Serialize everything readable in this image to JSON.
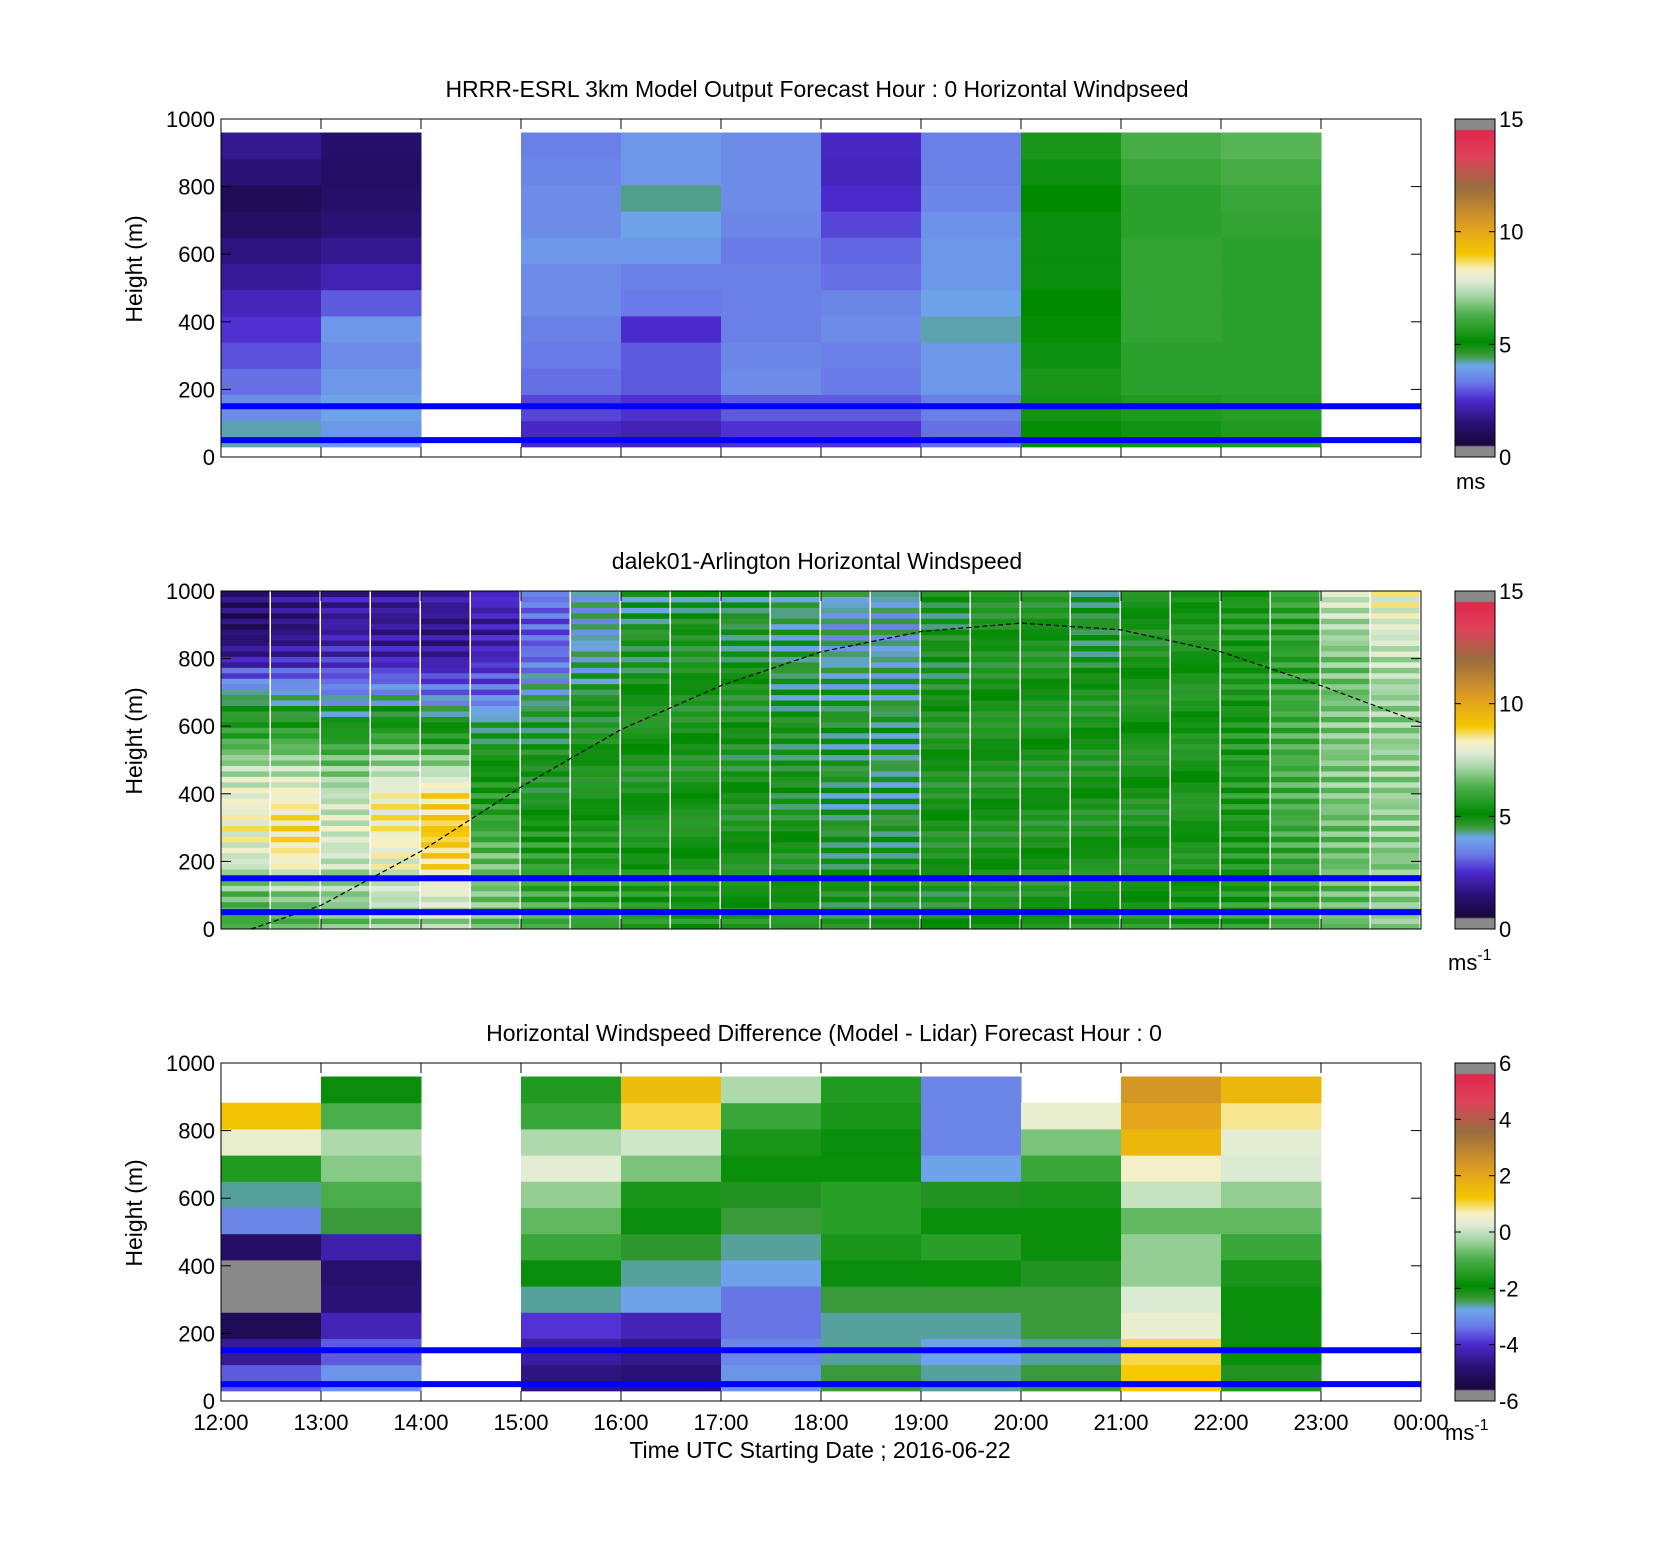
{
  "figure": {
    "xlabel": "Time UTC  Starting Date ; 2016-06-22",
    "x_ticks": [
      "12:00",
      "13:00",
      "14:00",
      "15:00",
      "16:00",
      "17:00",
      "18:00",
      "19:00",
      "20:00",
      "21:00",
      "22:00",
      "23:00",
      "00:00"
    ]
  },
  "chart_data": [
    {
      "type": "heatmap",
      "title": "HRRR-ESRL 3km Model Output   Forecast Hour : 0 Horizontal Windpseed",
      "ylabel": "Height (m)",
      "ylim": [
        0,
        1000
      ],
      "y_ticks": [
        "0",
        "200",
        "400",
        "600",
        "800",
        "1000"
      ],
      "x_range_hours": [
        12,
        24
      ],
      "colorbar": {
        "range": [
          0,
          15
        ],
        "ticks": [
          "0",
          "5",
          "10",
          "15"
        ],
        "unit": "ms",
        "unit_sup": ""
      },
      "guide_lines_m": [
        50,
        150
      ],
      "missing_hours": [
        14,
        23
      ],
      "columns": [
        {
          "hour": 12,
          "values": [
            4.2,
            3.6,
            3.2,
            2.9,
            2.6,
            2.3,
            1.9,
            1.6,
            1.2,
            1.0,
            1.5,
            1.8
          ]
        },
        {
          "hour": 13,
          "values": [
            3.8,
            4.0,
            3.8,
            3.6,
            3.8,
            3.0,
            2.2,
            1.8,
            1.5,
            1.3,
            1.2,
            1.3
          ]
        },
        {
          "hour": 15,
          "values": [
            2.4,
            2.8,
            3.2,
            3.3,
            3.4,
            3.6,
            3.6,
            3.8,
            3.6,
            3.6,
            3.5,
            3.4
          ]
        },
        {
          "hour": 16,
          "values": [
            2.2,
            2.6,
            3.0,
            3.0,
            2.5,
            3.3,
            3.4,
            3.8,
            4.0,
            4.3,
            3.8,
            3.8
          ]
        },
        {
          "hour": 17,
          "values": [
            2.6,
            3.0,
            3.6,
            3.5,
            3.4,
            3.4,
            3.4,
            3.3,
            3.5,
            3.6,
            3.6,
            3.6
          ]
        },
        {
          "hour": 18,
          "values": [
            2.6,
            3.0,
            3.3,
            3.4,
            3.6,
            3.5,
            3.2,
            3.1,
            2.8,
            2.5,
            2.3,
            2.4
          ]
        },
        {
          "hour": 19,
          "values": [
            3.2,
            3.4,
            3.8,
            3.8,
            4.2,
            4.0,
            3.8,
            3.8,
            3.7,
            3.5,
            3.4,
            3.4
          ]
        },
        {
          "hour": 20,
          "values": [
            5.2,
            5.4,
            5.5,
            5.3,
            5.2,
            5.1,
            5.0,
            5.0,
            5.0,
            5.1,
            5.3,
            5.5
          ]
        },
        {
          "hour": 21,
          "values": [
            5.4,
            5.6,
            5.8,
            5.8,
            5.9,
            5.9,
            5.9,
            5.9,
            5.8,
            5.8,
            6.0,
            6.2
          ]
        },
        {
          "hour": 22,
          "values": [
            5.6,
            5.7,
            5.8,
            5.8,
            5.8,
            5.8,
            5.8,
            5.8,
            5.9,
            6.0,
            6.2,
            6.4
          ]
        }
      ]
    },
    {
      "type": "heatmap",
      "title": "dalek01-Arlington  Horizontal Windspeed",
      "ylabel": "Height (m)",
      "ylim": [
        0,
        1000
      ],
      "y_ticks": [
        "0",
        "200",
        "400",
        "600",
        "800",
        "1000"
      ],
      "x_range_hours": [
        12,
        24
      ],
      "colorbar": {
        "range": [
          0,
          15
        ],
        "ticks": [
          "0",
          "5",
          "10",
          "15"
        ],
        "unit": "ms",
        "unit_sup": "-1"
      },
      "guide_lines_m": [
        50,
        150
      ],
      "series": [
        {
          "type": "line",
          "style": "dashed",
          "x_hours": [
            12.3,
            13.0,
            14.0,
            15.0,
            16.0,
            17.0,
            18.0,
            19.0,
            20.0,
            21.0,
            22.0,
            23.0,
            24.0
          ],
          "y": [
            0,
            70,
            230,
            420,
            590,
            720,
            820,
            880,
            905,
            885,
            820,
            720,
            610
          ]
        }
      ],
      "profile_hours": [
        12.0,
        12.5,
        13.0,
        13.5,
        14.0,
        14.5,
        15.0,
        15.5,
        16.0,
        16.5,
        17.0,
        17.5,
        18.0,
        18.5,
        19.0,
        19.5,
        20.0,
        20.5,
        21.0,
        21.5,
        22.0,
        22.5,
        23.0,
        23.5
      ],
      "profile_heights_m": [
        0,
        100,
        200,
        300,
        400,
        500,
        600,
        700,
        800,
        900,
        1000
      ],
      "profiles": [
        [
          6.0,
          6.5,
          7.6,
          8.2,
          8.0,
          7.0,
          5.5,
          4.2,
          2.0,
          1.2,
          1.5
        ],
        [
          6.2,
          6.8,
          8.3,
          8.6,
          8.2,
          7.0,
          5.6,
          4.0,
          2.2,
          1.5,
          1.8
        ],
        [
          6.5,
          7.0,
          7.5,
          7.8,
          7.4,
          6.6,
          5.2,
          3.6,
          2.4,
          2.0,
          2.0
        ],
        [
          6.8,
          7.5,
          8.0,
          8.4,
          8.2,
          7.0,
          5.5,
          3.8,
          2.2,
          1.8,
          2.0
        ],
        [
          7.0,
          7.8,
          8.8,
          9.0,
          8.6,
          6.8,
          5.0,
          3.4,
          2.0,
          1.6,
          2.2
        ],
        [
          6.5,
          6.8,
          6.6,
          6.0,
          5.6,
          5.2,
          4.6,
          3.2,
          2.4,
          2.0,
          2.6
        ],
        [
          6.2,
          6.0,
          5.8,
          5.5,
          5.0,
          4.8,
          4.8,
          4.2,
          3.2,
          3.0,
          3.5
        ],
        [
          6.0,
          5.8,
          5.6,
          5.3,
          5.2,
          5.0,
          5.0,
          4.6,
          4.2,
          4.0,
          4.0
        ],
        [
          5.8,
          5.5,
          5.4,
          5.2,
          5.0,
          5.0,
          5.2,
          5.0,
          4.8,
          4.6,
          4.5
        ],
        [
          5.6,
          5.4,
          5.2,
          5.2,
          5.1,
          5.0,
          5.0,
          5.0,
          5.0,
          4.8,
          4.6
        ],
        [
          5.4,
          5.2,
          5.1,
          5.0,
          5.0,
          4.9,
          4.9,
          5.0,
          4.8,
          4.6,
          4.6
        ],
        [
          5.2,
          5.0,
          5.0,
          5.0,
          4.8,
          4.8,
          4.8,
          4.6,
          4.5,
          4.4,
          4.4
        ],
        [
          5.0,
          4.8,
          4.8,
          4.6,
          4.6,
          4.6,
          4.7,
          4.5,
          4.2,
          4.0,
          4.2
        ],
        [
          5.0,
          4.9,
          4.8,
          4.6,
          4.5,
          4.4,
          4.6,
          4.4,
          4.2,
          4.0,
          4.2
        ],
        [
          5.0,
          4.9,
          5.0,
          5.0,
          5.0,
          5.0,
          5.0,
          4.9,
          4.8,
          4.8,
          4.8
        ],
        [
          5.2,
          5.0,
          5.0,
          5.0,
          5.0,
          5.0,
          5.1,
          5.0,
          5.0,
          5.0,
          5.0
        ],
        [
          5.2,
          5.0,
          5.0,
          5.0,
          5.0,
          5.0,
          5.1,
          5.0,
          5.0,
          5.0,
          5.0
        ],
        [
          5.4,
          5.2,
          5.1,
          5.0,
          5.0,
          5.0,
          5.0,
          5.0,
          4.8,
          4.6,
          4.8
        ],
        [
          5.4,
          5.2,
          5.1,
          5.0,
          5.0,
          5.1,
          5.2,
          5.1,
          5.0,
          5.0,
          5.2
        ],
        [
          5.6,
          5.4,
          5.3,
          5.2,
          5.2,
          5.2,
          5.3,
          5.2,
          5.2,
          5.3,
          5.3
        ],
        [
          5.8,
          5.6,
          5.5,
          5.5,
          5.6,
          5.6,
          5.5,
          5.4,
          5.4,
          5.5,
          5.5
        ],
        [
          6.2,
          6.0,
          6.0,
          6.1,
          6.2,
          6.2,
          6.1,
          6.0,
          5.8,
          5.8,
          6.0
        ],
        [
          6.6,
          6.5,
          6.6,
          6.6,
          6.8,
          6.8,
          6.8,
          6.6,
          6.8,
          7.2,
          7.8
        ],
        [
          7.0,
          6.9,
          6.8,
          7.0,
          7.0,
          7.0,
          7.0,
          7.1,
          7.4,
          7.8,
          8.2
        ]
      ]
    },
    {
      "type": "heatmap",
      "title": "Horizontal Windspeed Difference (Model - Lidar) Forecast Hour : 0",
      "ylabel": "Height (m)",
      "ylim": [
        0,
        1000
      ],
      "y_ticks": [
        "0",
        "200",
        "400",
        "600",
        "800",
        "1000"
      ],
      "x_range_hours": [
        12,
        24
      ],
      "colorbar": {
        "range": [
          -6,
          6
        ],
        "ticks": [
          "-6",
          "-4",
          "-2",
          "0",
          "2",
          "4",
          "6"
        ],
        "unit": "ms",
        "unit_sup": "-1"
      },
      "guide_lines_m": [
        50,
        150
      ],
      "missing_hours": [
        14,
        23
      ],
      "columns": [
        {
          "hour": 12,
          "values": [
            -3.6,
            -4.5,
            -5.2,
            -5.8,
            -6.0,
            -5.0,
            -3.2,
            -2.6,
            -1.5,
            0.4,
            1.3,
            null
          ]
        },
        {
          "hour": 13,
          "values": [
            -3.0,
            -3.6,
            -4.2,
            -4.8,
            -4.9,
            -4.3,
            -2.4,
            -1.0,
            -0.5,
            -0.2,
            -1.0,
            -2.0
          ]
        },
        {
          "hour": 15,
          "values": [
            -4.7,
            -4.4,
            -3.9,
            -2.6,
            -2.0,
            -1.2,
            -0.8,
            -0.4,
            0.3,
            -0.2,
            -1.2,
            -1.5
          ]
        },
        {
          "hour": 16,
          "values": [
            -4.8,
            -4.6,
            -4.2,
            -2.8,
            -2.6,
            -2.3,
            -2.0,
            -1.6,
            -0.6,
            0.1,
            1.0,
            1.5
          ]
        },
        {
          "hour": 17,
          "values": [
            -3.0,
            -3.2,
            -3.4,
            -3.4,
            -2.8,
            -2.6,
            -2.4,
            -2.2,
            -1.8,
            -1.6,
            -1.2,
            -0.2
          ]
        },
        {
          "hour": 18,
          "values": [
            -2.4,
            -2.6,
            -2.6,
            -2.4,
            -2.0,
            -1.6,
            -1.4,
            -1.4,
            -1.8,
            -2.0,
            -1.6,
            -1.5
          ]
        },
        {
          "hour": 19,
          "values": [
            -2.6,
            -2.8,
            -2.6,
            -2.4,
            -1.8,
            -1.4,
            -1.8,
            -2.2,
            -2.8,
            -3.2,
            -3.2,
            -3.2
          ]
        },
        {
          "hour": 20,
          "values": [
            -2.4,
            -2.6,
            -2.4,
            -2.4,
            -2.2,
            -2.0,
            -1.8,
            -1.6,
            -1.2,
            -0.6,
            0.4,
            null
          ]
        },
        {
          "hour": 21,
          "values": [
            1.2,
            1.0,
            0.4,
            0.2,
            -0.4,
            -0.4,
            -0.8,
            0.0,
            0.6,
            1.6,
            2.0,
            2.4
          ]
        },
        {
          "hour": 22,
          "values": [
            -2.2,
            -2.0,
            -2.0,
            -1.8,
            -1.6,
            -1.2,
            -0.8,
            -0.4,
            0.2,
            0.3,
            0.8,
            1.6
          ]
        }
      ]
    }
  ]
}
